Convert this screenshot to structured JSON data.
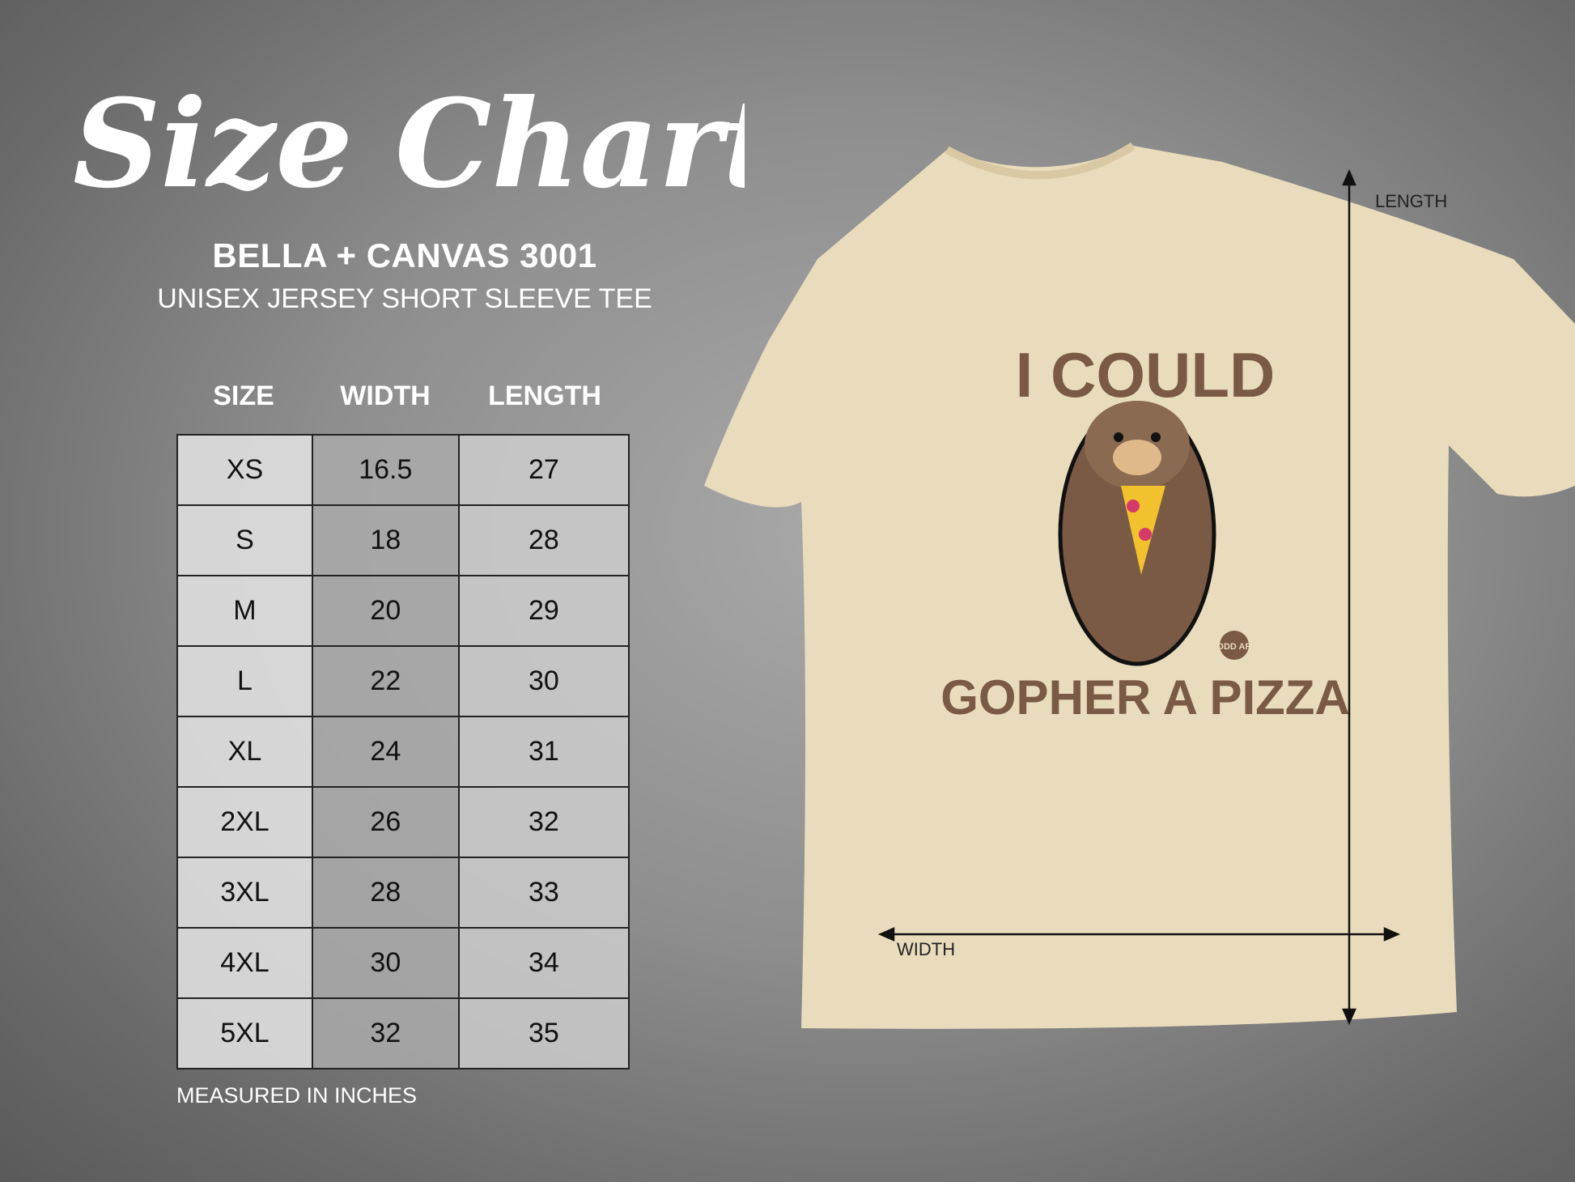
{
  "title": "Size Chart",
  "brand": "BELLA + CANVAS 3001",
  "model": "UNISEX JERSEY SHORT SLEEVE TEE",
  "table": {
    "headers": [
      "SIZE",
      "WIDTH",
      "LENGTH"
    ],
    "rows": [
      [
        "XS",
        "16.5",
        "27"
      ],
      [
        "S",
        "18",
        "28"
      ],
      [
        "M",
        "20",
        "29"
      ],
      [
        "L",
        "22",
        "30"
      ],
      [
        "XL",
        "24",
        "31"
      ],
      [
        "2XL",
        "26",
        "32"
      ],
      [
        "3XL",
        "28",
        "33"
      ],
      [
        "4XL",
        "30",
        "34"
      ],
      [
        "5XL",
        "32",
        "35"
      ]
    ]
  },
  "note": "MEASURED IN INCHES",
  "shirt": {
    "color": "#e9dcbc",
    "print_top": "I COULD",
    "print_bottom": "GOPHER A PIZZA",
    "print_color": "#7a5a45",
    "badge": "TODD ART",
    "length_label": "LENGTH",
    "width_label": "WIDTH"
  }
}
